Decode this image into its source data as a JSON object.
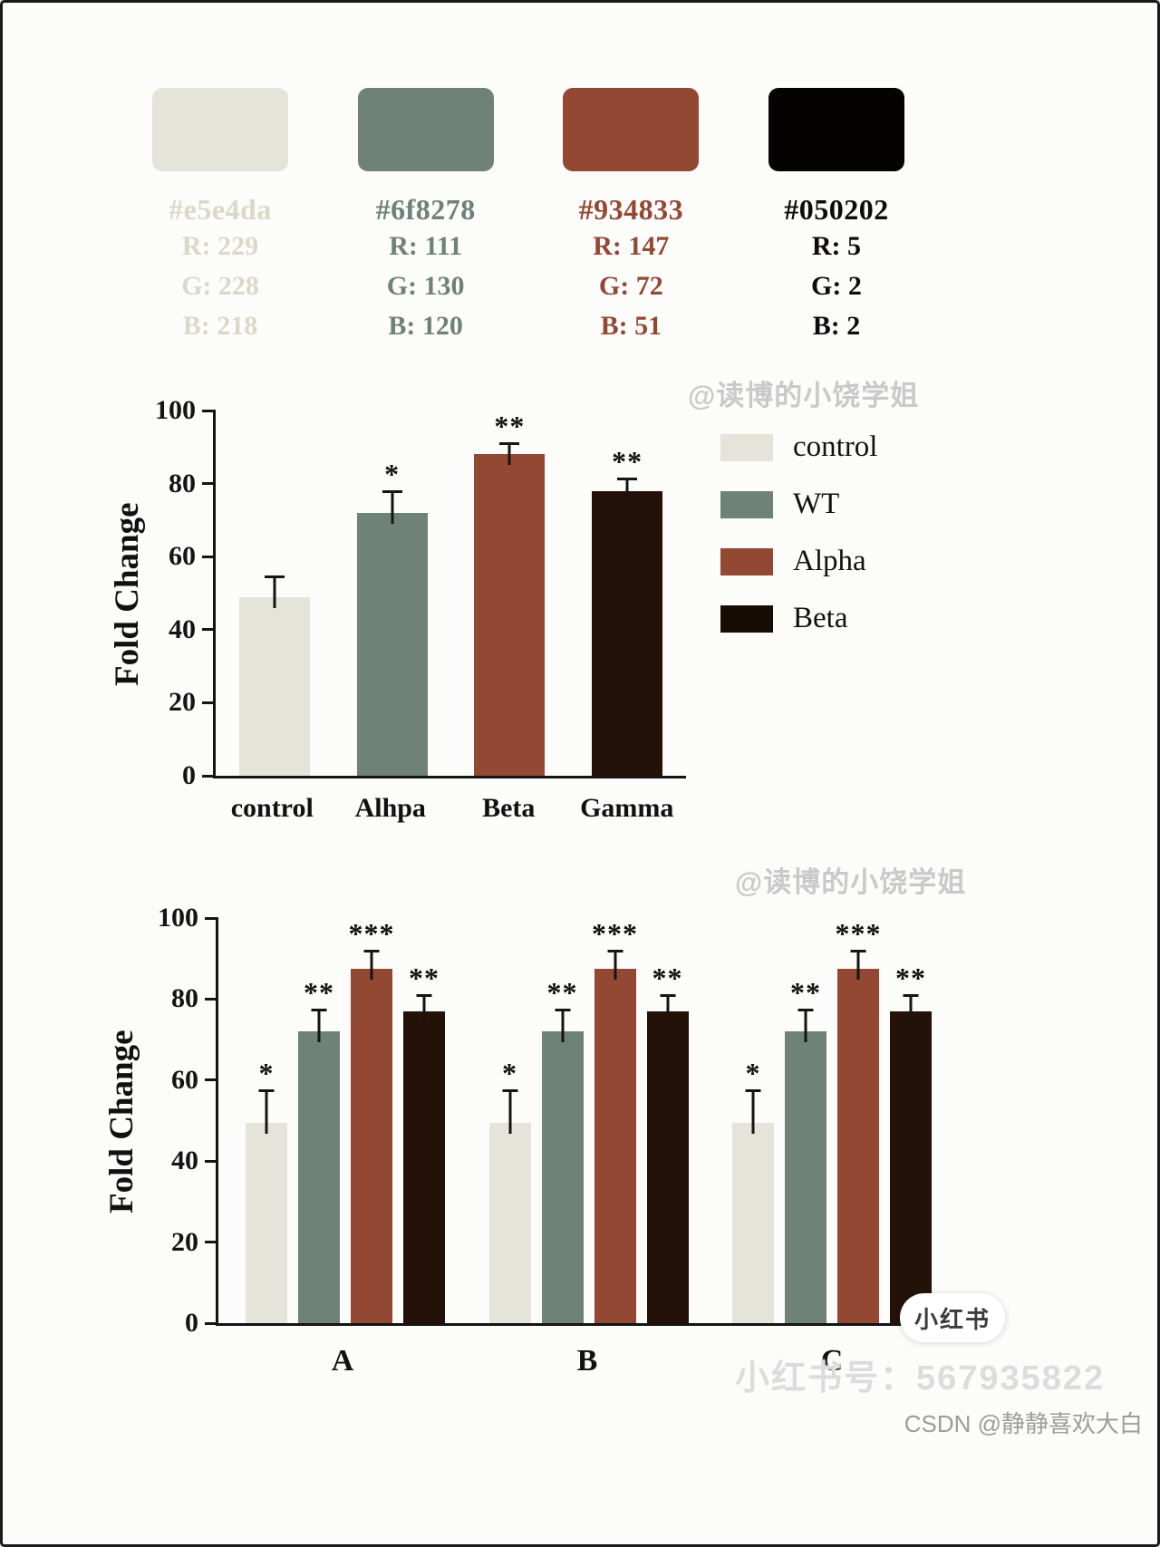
{
  "palette": [
    {
      "hex_label": "#e5e4da",
      "rgb_lines": [
        "R: 229",
        "G: 228",
        "B: 218"
      ],
      "color": "#e5e4da",
      "text_color": "#dbd8c9"
    },
    {
      "hex_label": "#6f8278",
      "rgb_lines": [
        "R: 111",
        "G: 130",
        "B: 120"
      ],
      "color": "#6f8278",
      "text_color": "#6f8278"
    },
    {
      "hex_label": "#934833",
      "rgb_lines": [
        "R: 147",
        "G: 72",
        "B: 51"
      ],
      "color": "#934833",
      "text_color": "#934833"
    },
    {
      "hex_label": "#050202",
      "rgb_lines": [
        "R: 5",
        "G: 2",
        "B: 2"
      ],
      "color": "#050202",
      "text_color": "#0d0b0b"
    }
  ],
  "chart_data": [
    {
      "type": "bar",
      "title": "",
      "ylabel": "Fold Change",
      "xlabel": "",
      "ylim": [
        0,
        100
      ],
      "yticks": [
        0,
        20,
        40,
        60,
        80,
        100
      ],
      "grid": false,
      "categories": [
        "control",
        "Alhpa",
        "Beta",
        "Gamma"
      ],
      "values": [
        49,
        72,
        88,
        78
      ],
      "errors": [
        5,
        5.5,
        2.5,
        3
      ],
      "significance": [
        "",
        "*",
        "**",
        "**"
      ],
      "bar_colors": [
        "#e5e4da",
        "#6f8278",
        "#934833",
        "#241208"
      ],
      "legend_position": "right",
      "legend": [
        {
          "label": "control",
          "color": "#e5e4da"
        },
        {
          "label": "WT",
          "color": "#6f8278"
        },
        {
          "label": "Alpha",
          "color": "#934833"
        },
        {
          "label": "Beta",
          "color": "#170b05"
        }
      ],
      "watermark": "@读博的小饶学姐"
    },
    {
      "type": "bar",
      "title": "",
      "ylabel": "Fold Change",
      "xlabel": "",
      "ylim": [
        0,
        100
      ],
      "yticks": [
        0,
        20,
        40,
        60,
        80,
        100
      ],
      "grid": false,
      "categories": [
        "A",
        "B",
        "C"
      ],
      "series": [
        {
          "name": "control",
          "color": "#e5e4da",
          "values": [
            49.5,
            49.5,
            49.5
          ],
          "errors": [
            7.5,
            7.5,
            7.5
          ],
          "significance": [
            "*",
            "*",
            "*"
          ]
        },
        {
          "name": "WT",
          "color": "#6f8278",
          "values": [
            72,
            72,
            72
          ],
          "errors": [
            5,
            5,
            5
          ],
          "significance": [
            "**",
            "**",
            "**"
          ]
        },
        {
          "name": "Alpha",
          "color": "#934833",
          "values": [
            87.5,
            87.5,
            87.5
          ],
          "errors": [
            4,
            4,
            4
          ],
          "significance": [
            "***",
            "***",
            "***"
          ]
        },
        {
          "name": "Beta",
          "color": "#241208",
          "values": [
            77,
            77,
            77
          ],
          "errors": [
            3.5,
            3.5,
            3.5
          ],
          "significance": [
            "**",
            "**",
            "**"
          ]
        }
      ],
      "watermark": "@读博的小饶学姐"
    }
  ],
  "footer": {
    "sticker_text": "小红书",
    "xiaohongshu_id": "小红书号：567935822",
    "csdn_credit": "CSDN @静静喜欢大白"
  }
}
